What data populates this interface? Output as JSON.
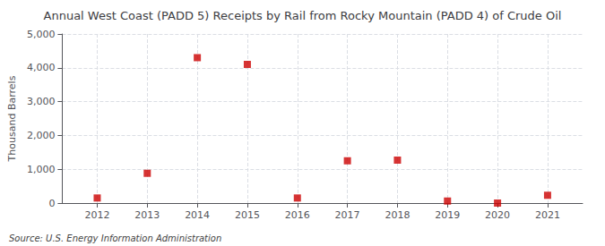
{
  "chart_data": {
    "type": "scatter",
    "title": "Annual West Coast (PADD 5) Receipts by Rail from Rocky Mountain (PADD 4) of Crude Oil",
    "ylabel": "Thousand Barrels",
    "annotation": "Source: U.S. Energy Information Administration",
    "x": [
      2012,
      2013,
      2014,
      2015,
      2016,
      2017,
      2018,
      2019,
      2020,
      2021
    ],
    "values": [
      150,
      880,
      4300,
      4100,
      150,
      1250,
      1270,
      60,
      0,
      230
    ],
    "xlim": [
      2011.3,
      2021.7
    ],
    "xticks": [
      2012,
      2013,
      2014,
      2015,
      2016,
      2017,
      2018,
      2019,
      2020,
      2021
    ],
    "ylim": [
      0,
      5000
    ],
    "yticks": [
      0,
      {
        "value": 1000,
        "label": "1,000"
      },
      {
        "value": 2000,
        "label": "2,000"
      },
      {
        "value": 3000,
        "label": "3,000"
      },
      {
        "value": 4000,
        "label": "4,000"
      },
      {
        "value": 5000,
        "label": "5,000"
      }
    ],
    "color": "#cc0000",
    "marker": "square",
    "grid": true
  }
}
